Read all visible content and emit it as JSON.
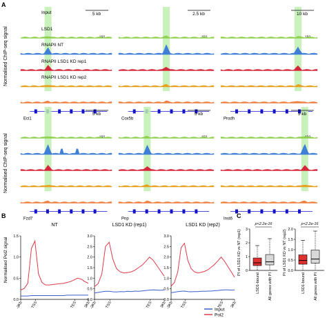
{
  "panel_labels": {
    "a": "A",
    "b": "B",
    "c": "C"
  },
  "panel_a": {
    "ylabel": "Normalised ChIP-seq signal",
    "track_labels": [
      "Input",
      "LSD1",
      "RNAPII NT",
      "RNAPII LSD1 KD rep1",
      "RNAPII LSD1 KD rep2"
    ],
    "track_colors": [
      "#8fd14f",
      "#3f7fd8",
      "#d6263a",
      "#e8a01e",
      "#ef7f3c"
    ],
    "highlight_color": "#bfeeb0",
    "gene_color": "#1414cc",
    "loci": [
      {
        "gene": "Eci1",
        "scale": "5 kb"
      },
      {
        "gene": "Cox5b",
        "scale": "2.5 kb"
      },
      {
        "gene": "Prodh",
        "scale": "10 kb"
      },
      {
        "gene": "Fzd7",
        "scale": "5 kb"
      },
      {
        "gene": "Pnp",
        "scale": "5 kb"
      },
      {
        "gene": "Inst6",
        "scale": "5 kb"
      }
    ],
    "row_tick_labels": [
      "150",
      "150",
      "150",
      "150",
      "150",
      "150"
    ]
  },
  "panel_b": {
    "ylabel": "Normalised Pol2 signal",
    "legend": [
      {
        "name": "Input",
        "color": "#3a5fcd"
      },
      {
        "name": "Pol2",
        "color": "#e03a4a"
      }
    ],
    "chart_data": [
      {
        "type": "line",
        "title": "NT",
        "x_ticks": [
          "-3Kb",
          "TSS",
          "TES",
          "3Kb"
        ],
        "ylim": [
          0,
          1.5
        ],
        "y_ticks": [
          "0.0",
          "0.5",
          "1.0",
          "1.5"
        ],
        "series": [
          {
            "name": "Pol2",
            "values": [
              0.22,
              0.26,
              0.38,
              1.2,
              1.38,
              0.6,
              0.4,
              0.34,
              0.34,
              0.35,
              0.36,
              0.37,
              0.38,
              0.4,
              0.42,
              0.46,
              0.5,
              0.48,
              0.42,
              0.38
            ]
          },
          {
            "name": "Input",
            "values": [
              0.08,
              0.08,
              0.08,
              0.09,
              0.09,
              0.09,
              0.09,
              0.09,
              0.09,
              0.09,
              0.09,
              0.09,
              0.09,
              0.1,
              0.1,
              0.1,
              0.1,
              0.1,
              0.1,
              0.1
            ]
          }
        ]
      },
      {
        "type": "line",
        "title": "LSD1 KD (rep1)",
        "x_ticks": [
          "-3Kb",
          "TSS",
          "TES",
          "3Kb"
        ],
        "ylim": [
          0,
          3.0
        ],
        "y_ticks": [
          "0.0",
          "0.5",
          "1.0",
          "1.5",
          "2.0",
          "2.5",
          "3.0"
        ],
        "series": [
          {
            "name": "Pol2",
            "values": [
              0.6,
              0.75,
              1.2,
              2.5,
              2.7,
              1.9,
              1.45,
              1.3,
              1.25,
              1.27,
              1.3,
              1.38,
              1.5,
              1.62,
              1.8,
              2.0,
              1.85,
              1.6,
              1.35,
              1.1
            ]
          },
          {
            "name": "Input",
            "values": [
              0.3,
              0.33,
              0.36,
              0.38,
              0.38,
              0.36,
              0.35,
              0.37,
              0.36,
              0.38,
              0.37,
              0.39,
              0.38,
              0.4,
              0.42,
              0.44,
              0.45,
              0.44,
              0.43,
              0.45
            ]
          }
        ]
      },
      {
        "type": "line",
        "title": "LSD1 KD (rep2)",
        "x_ticks": [
          "-3Kb",
          "TSS",
          "TES",
          "3Kb"
        ],
        "ylim": [
          0,
          3.0
        ],
        "y_ticks": [
          "0.0",
          "0.5",
          "1.0",
          "1.5",
          "2.0",
          "2.5",
          "3.0"
        ],
        "series": [
          {
            "name": "Pol2",
            "values": [
              0.62,
              0.8,
              1.3,
              2.45,
              2.65,
              1.85,
              1.45,
              1.3,
              1.25,
              1.28,
              1.32,
              1.4,
              1.52,
              1.65,
              1.82,
              2.0,
              1.8,
              1.55,
              1.3,
              1.05
            ]
          },
          {
            "name": "Input",
            "values": [
              0.32,
              0.34,
              0.37,
              0.38,
              0.39,
              0.37,
              0.36,
              0.37,
              0.37,
              0.38,
              0.38,
              0.39,
              0.39,
              0.41,
              0.42,
              0.44,
              0.45,
              0.45,
              0.44,
              0.45
            ]
          }
        ]
      }
    ]
  },
  "panel_c": {
    "chart_data": [
      {
        "type": "box",
        "ylabel": "PI of LSD1 KD vs NT (rep1)",
        "pvalue": "p<2.2e-16",
        "ylim": [
          0,
          3
        ],
        "y_ticks": [
          "0",
          "1",
          "2",
          "3"
        ],
        "categories": [
          "LSD1-bound",
          "All genes with PI"
        ],
        "boxes": [
          {
            "name": "LSD1-bound",
            "color": "#e03030",
            "whisker_low": 0.0,
            "q1": 0.35,
            "median": 0.55,
            "q3": 0.9,
            "whisker_high": 1.8
          },
          {
            "name": "All genes with PI",
            "color": "#d8d8d8",
            "whisker_low": 0.0,
            "q1": 0.4,
            "median": 0.62,
            "q3": 1.15,
            "whisker_high": 2.3
          }
        ]
      },
      {
        "type": "box",
        "ylabel": "PI of LSD1 KD vs NT (rep2)",
        "pvalue": "p<2.2e-16",
        "ylim": [
          0,
          2
        ],
        "y_ticks": [
          "0.0",
          "0.5",
          "1.0",
          "1.5",
          "2.0"
        ],
        "categories": [
          "LSD1-bound",
          "All genes with PI"
        ],
        "boxes": [
          {
            "name": "LSD1-bound",
            "color": "#e03030",
            "whisker_low": 0.0,
            "q1": 0.3,
            "median": 0.48,
            "q3": 0.75,
            "whisker_high": 1.45
          },
          {
            "name": "All genes with PI",
            "color": "#d8d8d8",
            "whisker_low": 0.0,
            "q1": 0.35,
            "median": 0.55,
            "q3": 0.98,
            "whisker_high": 1.9
          }
        ]
      }
    ]
  }
}
